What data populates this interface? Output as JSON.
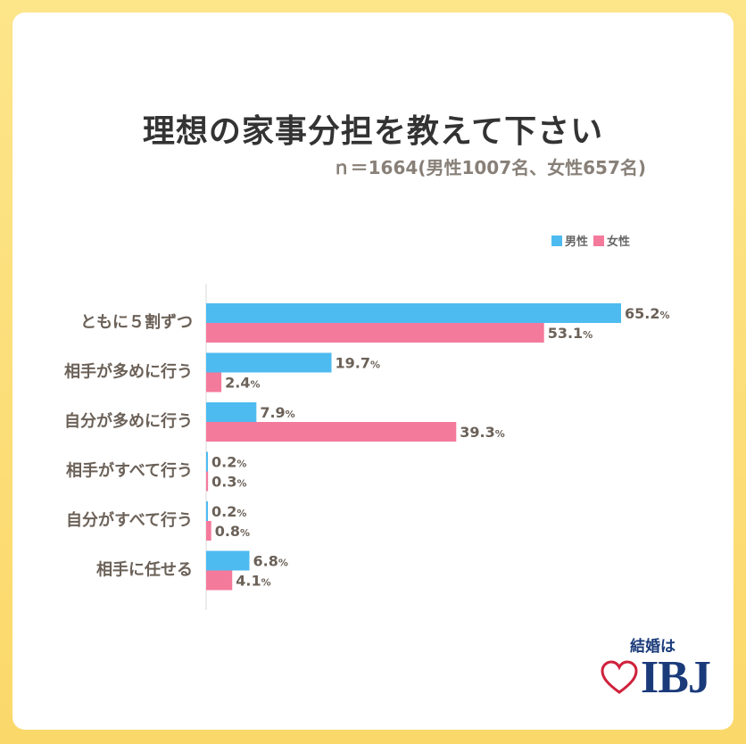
{
  "header": {
    "title": "理想の家事分担を教えて下さい",
    "subtitle": "ｎ＝1664(男性1007名、女性657名)"
  },
  "legend": {
    "male": "男性",
    "female": "女性"
  },
  "colors": {
    "male": "#4dbbf0",
    "female": "#f47a9c",
    "label": "#6b6158"
  },
  "chart_data": {
    "type": "bar",
    "orientation": "horizontal",
    "title": "理想の家事分担を教えて下さい",
    "categories": [
      "ともに５割ずつ",
      "相手が多めに行う",
      "自分が多めに行う",
      "相手がすべて行う",
      "自分がすべて行う",
      "相手に任せる"
    ],
    "series": [
      {
        "name": "男性",
        "values": [
          65.2,
          19.7,
          7.9,
          0.2,
          0.2,
          6.8
        ]
      },
      {
        "name": "女性",
        "values": [
          53.1,
          2.4,
          39.3,
          0.3,
          0.8,
          4.1
        ]
      }
    ],
    "unit": "%",
    "xlim": [
      0,
      65.2
    ],
    "grid": false,
    "legend_position": "top-right"
  },
  "logo": {
    "top_text": "結婚は",
    "brand": "IBJ"
  }
}
